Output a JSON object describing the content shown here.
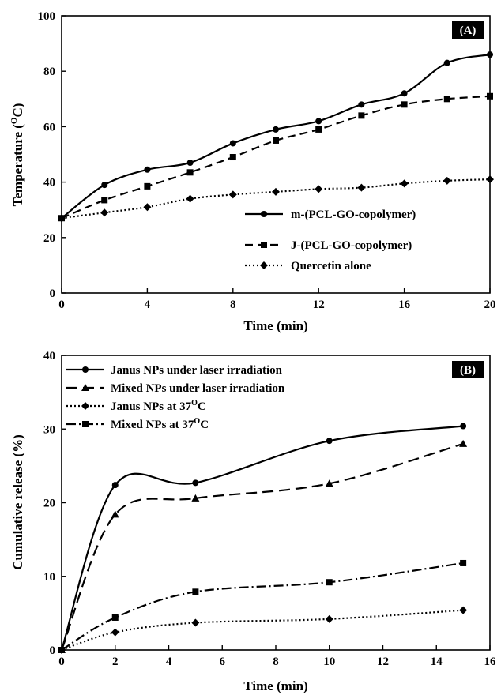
{
  "chart_data": [
    {
      "type": "line",
      "panel_label": "(A)",
      "xlabel": "Time (min)",
      "ylabel_prefix": "Temperature (",
      "ylabel_sup": "O",
      "ylabel_suffix": "C)",
      "xlim": [
        0,
        20
      ],
      "ylim": [
        0,
        100
      ],
      "xticks": [
        0,
        4,
        8,
        12,
        16,
        20
      ],
      "yticks": [
        0,
        20,
        40,
        60,
        80,
        100
      ],
      "grid": false,
      "legend_position": "bottom-right",
      "series": [
        {
          "name": "m-(PCL-GO-copolymer)",
          "style": "solid",
          "marker": "circle",
          "x": [
            0,
            2,
            4,
            6,
            8,
            10,
            12,
            14,
            16,
            18,
            20
          ],
          "y": [
            27,
            39,
            44.5,
            47,
            54,
            59,
            62,
            68,
            72,
            83,
            86
          ]
        },
        {
          "name": "J-(PCL-GO-copolymer)",
          "style": "dashed",
          "marker": "square",
          "x": [
            0,
            2,
            4,
            6,
            8,
            10,
            12,
            14,
            16,
            18,
            20
          ],
          "y": [
            27,
            33.5,
            38.5,
            43.5,
            49,
            55,
            59,
            64,
            68,
            70,
            71
          ]
        },
        {
          "name": "Quercetin alone",
          "style": "dotted",
          "marker": "diamond",
          "x": [
            0,
            2,
            4,
            6,
            8,
            10,
            12,
            14,
            16,
            18,
            20
          ],
          "y": [
            27,
            29,
            31,
            34,
            35.5,
            36.5,
            37.5,
            38,
            39.5,
            40.5,
            41
          ]
        }
      ]
    },
    {
      "type": "line",
      "panel_label": "(B)",
      "xlabel": "Time (min)",
      "ylabel": "Cumulative release (%)",
      "xlim": [
        0,
        16
      ],
      "ylim": [
        0,
        40
      ],
      "xticks": [
        0,
        2,
        4,
        6,
        8,
        10,
        12,
        14,
        16
      ],
      "yticks": [
        0,
        10,
        20,
        30,
        40
      ],
      "grid": false,
      "legend_position": "top-left",
      "series": [
        {
          "name": "Janus NPs under laser irradiation",
          "style": "solid",
          "marker": "circle",
          "x": [
            0,
            2,
            5,
            10,
            15
          ],
          "y": [
            0,
            22.4,
            22.7,
            28.4,
            30.4
          ]
        },
        {
          "name": "Mixed NPs under laser irradiation",
          "style": "longdash",
          "marker": "triangle",
          "x": [
            0,
            2,
            5,
            10,
            15
          ],
          "y": [
            0,
            18.4,
            20.6,
            22.6,
            28
          ]
        },
        {
          "name_prefix": "Janus NPs at 37",
          "name_sup": "O",
          "name_suffix": "C",
          "style": "dotted",
          "marker": "diamond",
          "x": [
            0,
            2,
            5,
            10,
            15
          ],
          "y": [
            0,
            2.4,
            3.7,
            4.2,
            5.4
          ]
        },
        {
          "name_prefix": "Mixed NPs at 37",
          "name_sup": "O",
          "name_suffix": "C",
          "style": "dashdot",
          "marker": "square",
          "x": [
            0,
            2,
            5,
            10,
            15
          ],
          "y": [
            0,
            4.4,
            7.9,
            9.2,
            11.8
          ]
        }
      ]
    }
  ]
}
